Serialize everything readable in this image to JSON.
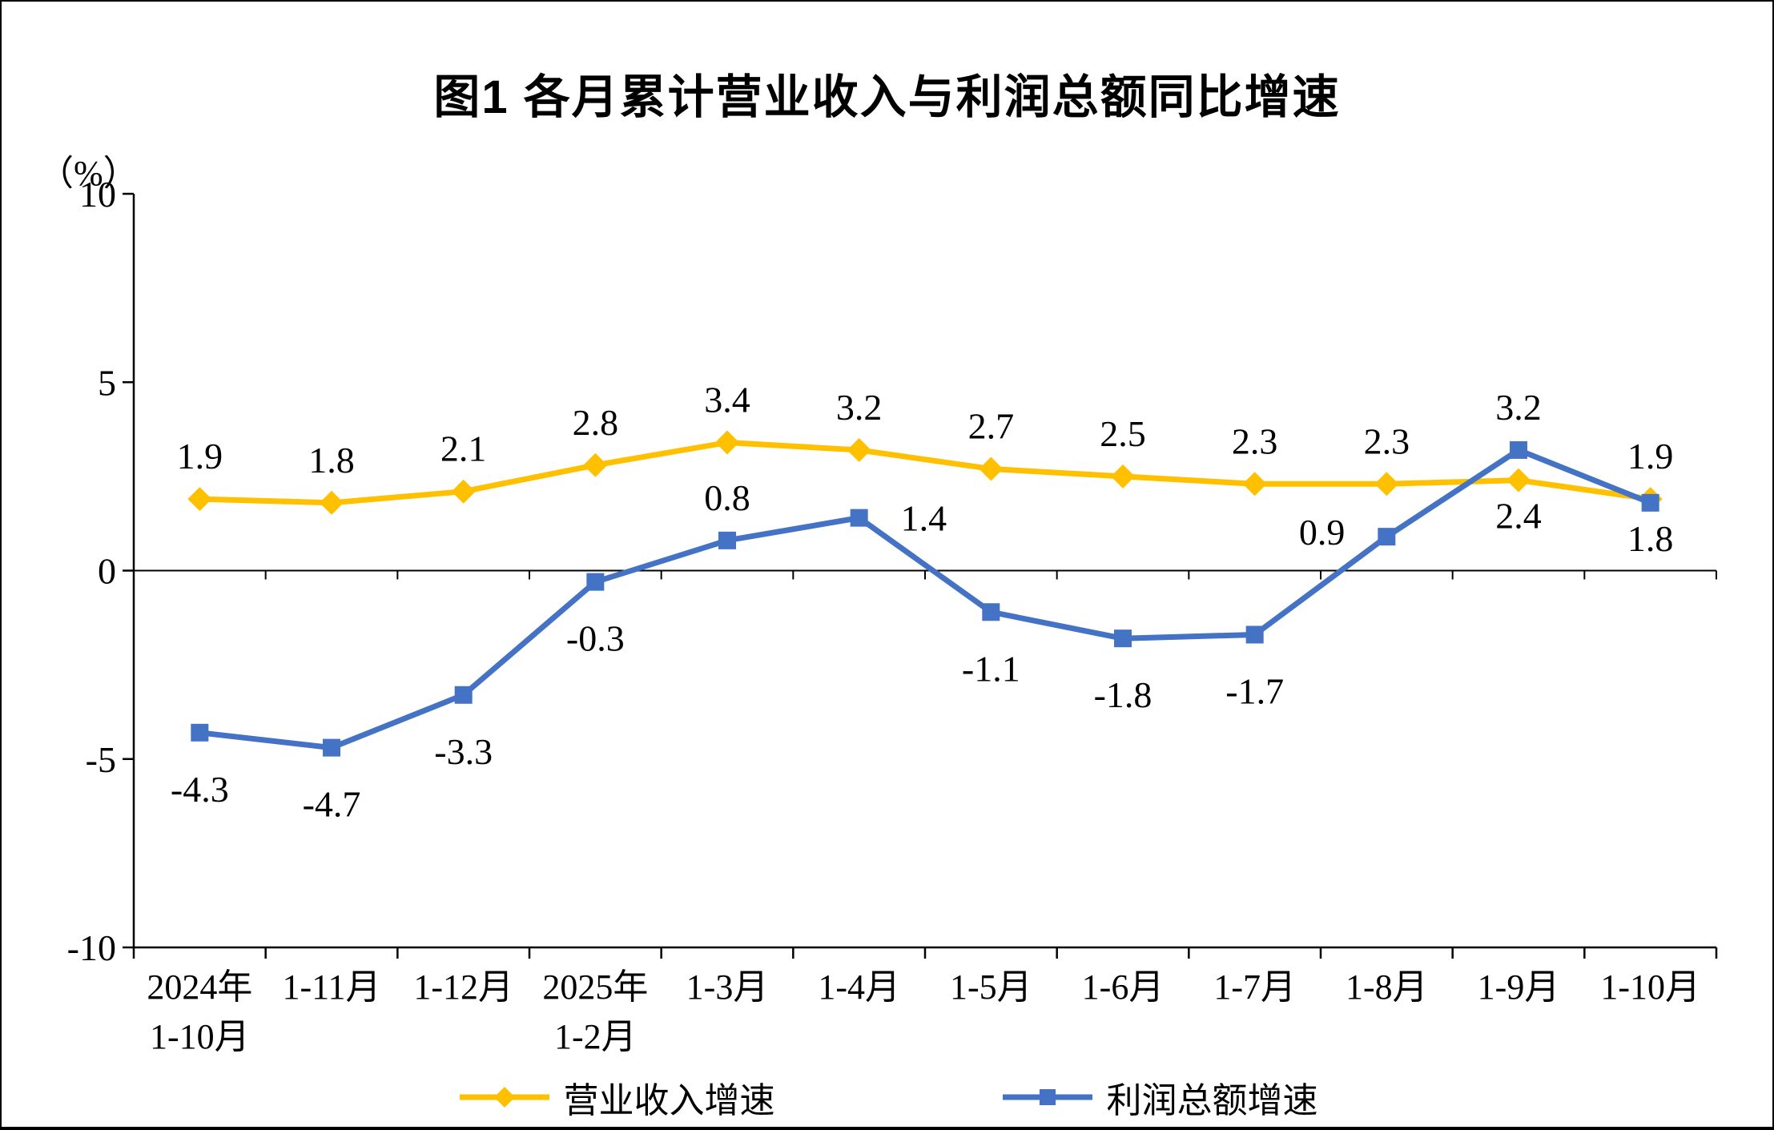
{
  "chart_data": {
    "type": "line",
    "title": "图1  各月累计营业收入与利润总额同比增速",
    "unit_label": "（%）",
    "categories": [
      [
        "2024年",
        "1-10月"
      ],
      [
        "1-11月"
      ],
      [
        "1-12月"
      ],
      [
        "2025年",
        "1-2月"
      ],
      [
        "1-3月"
      ],
      [
        "1-4月"
      ],
      [
        "1-5月"
      ],
      [
        "1-6月"
      ],
      [
        "1-7月"
      ],
      [
        "1-8月"
      ],
      [
        "1-9月"
      ],
      [
        "1-10月"
      ]
    ],
    "series": [
      {
        "name": "营业收入增速",
        "color": "#FFC000",
        "marker": "diamond",
        "values": [
          1.9,
          1.8,
          2.1,
          2.8,
          3.4,
          3.2,
          2.7,
          2.5,
          2.3,
          2.3,
          2.4,
          1.9
        ]
      },
      {
        "name": "利润总额增速",
        "color": "#4472C4",
        "marker": "square",
        "values": [
          -4.3,
          -4.7,
          -3.3,
          -0.3,
          0.8,
          1.4,
          -1.1,
          -1.8,
          -1.7,
          0.9,
          3.2,
          1.8
        ]
      }
    ],
    "ylim": [
      -10,
      10
    ],
    "y_ticks": [
      10,
      5,
      0,
      -5,
      -10
    ],
    "grid": "zero-line-only",
    "legend_position": "bottom",
    "axis_color": "#000000",
    "background_color": "#FFFFFF"
  }
}
